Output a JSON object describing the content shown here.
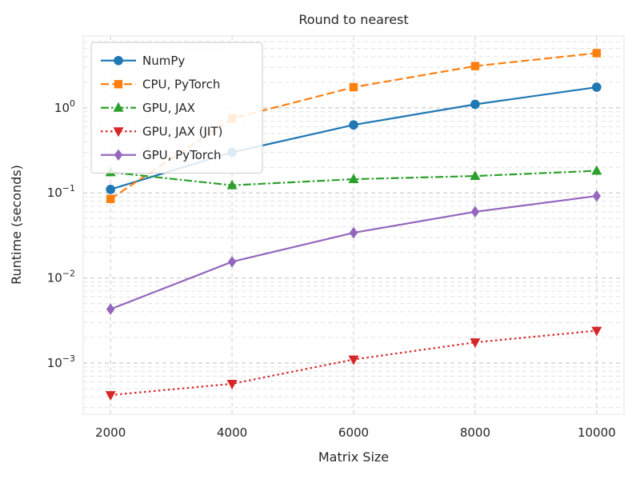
{
  "chart_data": {
    "type": "line",
    "title": "Round to nearest",
    "xlabel": "Matrix Size",
    "ylabel": "Runtime (seconds)",
    "x": [
      2000,
      4000,
      6000,
      8000,
      10000
    ],
    "xlim": [
      1550,
      10450
    ],
    "yscale": "log",
    "ylim": [
      0.00025,
      7
    ],
    "yticks_major": [
      0.001,
      0.01,
      0.1,
      1
    ],
    "grid": {
      "on": true,
      "style": "dashed",
      "which": "both",
      "major_color": "#cccccc",
      "minor_color": "#e2e2e2"
    },
    "legend": {
      "position": "upper left",
      "border_color": "#cccccc",
      "background": "#ffffff"
    },
    "series": [
      {
        "name": "NumPy",
        "color": "#1f77b4",
        "line": "solid",
        "marker": "circle",
        "values": [
          0.11,
          0.3,
          0.63,
          1.1,
          1.75
        ]
      },
      {
        "name": "CPU, PyTorch",
        "color": "#ff7f0e",
        "line": "dashed",
        "marker": "square",
        "values": [
          0.085,
          0.75,
          1.75,
          3.1,
          4.4
        ]
      },
      {
        "name": "GPU, JAX",
        "color": "#2ca02c",
        "line": "dashdot",
        "marker": "triangle-up",
        "values": [
          0.175,
          0.123,
          0.145,
          0.158,
          0.182
        ]
      },
      {
        "name": "GPU, JAX (JIT)",
        "color": "#d62728",
        "line": "dotted",
        "marker": "triangle-down",
        "values": [
          0.00042,
          0.00057,
          0.0011,
          0.00175,
          0.0024
        ]
      },
      {
        "name": "GPU, PyTorch",
        "color": "#9467bd",
        "line": "solid",
        "marker": "diamond",
        "values": [
          0.0043,
          0.0155,
          0.034,
          0.06,
          0.092
        ]
      }
    ],
    "text_color": "#262626"
  }
}
